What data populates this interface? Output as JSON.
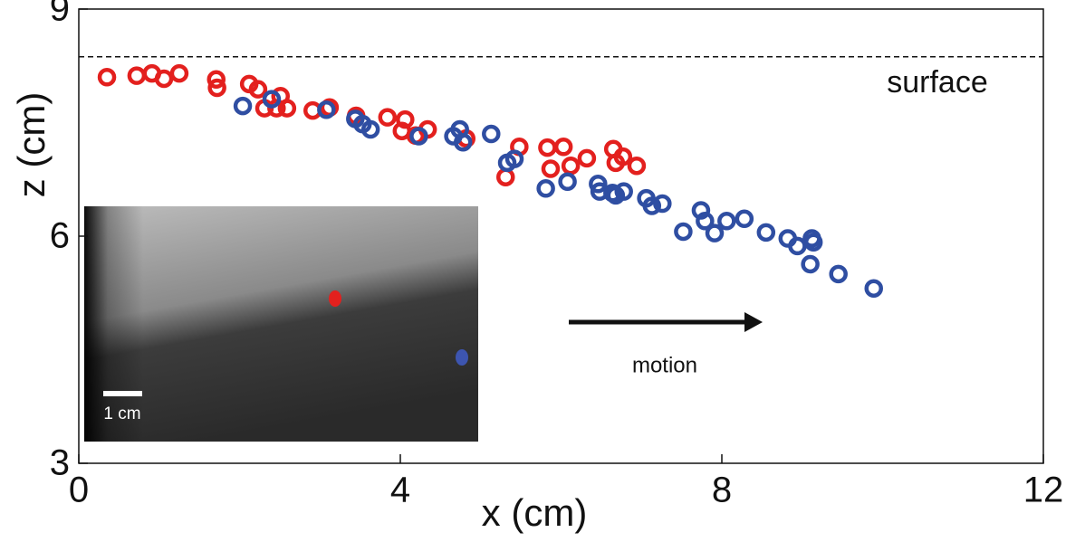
{
  "chart_data": {
    "type": "scatter",
    "xlabel": "x (cm)",
    "ylabel": "z (cm)",
    "xlim": [
      0,
      12
    ],
    "ylim": [
      3,
      9
    ],
    "xticks": [
      0,
      4,
      8,
      12
    ],
    "yticks": [
      3,
      6,
      9
    ],
    "surface": {
      "label": "surface",
      "z": 8.37
    },
    "motion_label": "motion",
    "inset_scale_label": "1 cm",
    "series": [
      {
        "color": "#e3201e",
        "x": [
          0.35,
          0.72,
          0.91,
          1.06,
          1.25,
          1.71,
          1.72,
          2.12,
          2.23,
          2.31,
          2.51,
          2.46,
          2.59,
          2.91,
          3.12,
          3.45,
          3.84,
          4.06,
          4.02,
          4.34,
          4.19,
          4.82,
          5.48,
          5.31,
          5.83,
          6.03,
          5.87,
          6.12,
          6.32,
          6.65,
          6.68,
          6.77,
          6.94
        ],
        "values": [
          8.1,
          8.12,
          8.15,
          8.08,
          8.15,
          8.07,
          7.96,
          8.01,
          7.94,
          7.69,
          7.85,
          7.69,
          7.69,
          7.66,
          7.7,
          7.59,
          7.57,
          7.54,
          7.39,
          7.41,
          7.33,
          7.29,
          7.18,
          6.78,
          7.17,
          7.18,
          6.89,
          6.93,
          7.03,
          7.15,
          6.97,
          7.05,
          6.93
        ]
      },
      {
        "color": "#2f4ea2",
        "x": [
          2.04,
          2.4,
          3.08,
          3.44,
          3.53,
          3.63,
          4.23,
          4.66,
          4.74,
          4.78,
          5.13,
          5.33,
          5.42,
          5.81,
          6.08,
          6.46,
          6.48,
          6.64,
          6.68,
          6.78,
          7.06,
          7.13,
          7.26,
          7.74,
          7.79,
          7.91,
          8.06,
          8.28,
          8.55,
          7.52,
          8.82,
          8.94,
          9.12,
          9.14,
          9.1,
          9.45,
          9.89
        ],
        "values": [
          7.72,
          7.81,
          7.67,
          7.55,
          7.48,
          7.41,
          7.32,
          7.32,
          7.41,
          7.24,
          7.35,
          6.97,
          7.02,
          6.63,
          6.72,
          6.69,
          6.59,
          6.57,
          6.54,
          6.59,
          6.5,
          6.4,
          6.43,
          6.34,
          6.2,
          6.04,
          6.2,
          6.23,
          6.05,
          6.06,
          5.97,
          5.87,
          5.97,
          5.92,
          5.63,
          5.5,
          5.31
        ]
      }
    ]
  }
}
